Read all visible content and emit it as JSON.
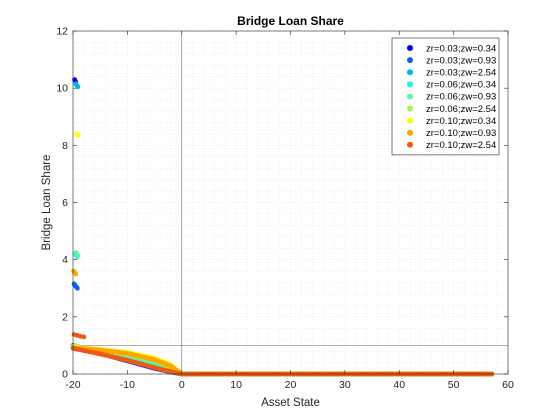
{
  "chart_data": {
    "type": "scatter",
    "title": "Bridge Loan Share",
    "xlabel": "Asset State",
    "ylabel": "Bridge Loan Share",
    "xlim": [
      -20,
      60
    ],
    "ylim": [
      0,
      12
    ],
    "x_ticks": [
      "-20",
      "-10",
      "0",
      "10",
      "20",
      "30",
      "40",
      "50",
      "60"
    ],
    "y_ticks": [
      "0",
      "2",
      "4",
      "6",
      "8",
      "10",
      "12"
    ],
    "grid": "minor dotted",
    "legend_position": "top-right",
    "reference_lines": {
      "vertical_x": 0,
      "horizontal_y": 1
    },
    "series": [
      {
        "name": "zr=0.03;zw=0.34",
        "color": "#0000ff",
        "points": [
          [
            -19.7,
            10.3
          ],
          [
            -19.6,
            10.25
          ],
          [
            -19.5,
            10.2
          ]
        ],
        "curve": [
          [
            -20,
            1.0
          ],
          [
            -15,
            0.72
          ],
          [
            -10,
            0.46
          ],
          [
            -5,
            0.2
          ],
          [
            -2,
            0.07
          ],
          [
            0,
            0
          ],
          [
            57,
            0
          ]
        ]
      },
      {
        "name": "zr=0.03;zw=0.93",
        "color": "#0f5fef",
        "points": [
          [
            -19.8,
            3.15
          ],
          [
            -19.6,
            3.1
          ],
          [
            -19.4,
            3.05
          ],
          [
            -19.2,
            3.0
          ]
        ],
        "curve": [
          [
            -20,
            0.99
          ],
          [
            -15,
            0.74
          ],
          [
            -10,
            0.5
          ],
          [
            -5,
            0.24
          ],
          [
            -2,
            0.09
          ],
          [
            0,
            0
          ],
          [
            57,
            0
          ]
        ]
      },
      {
        "name": "zr=0.03;zw=2.54",
        "color": "#00b4ef",
        "points": [
          [
            -19.5,
            10.15
          ],
          [
            -19.3,
            10.1
          ],
          [
            -19.1,
            10.05
          ]
        ],
        "curve": [
          [
            -20,
            0.98
          ],
          [
            -15,
            0.77
          ],
          [
            -10,
            0.55
          ],
          [
            -5,
            0.3
          ],
          [
            -2,
            0.12
          ],
          [
            0,
            0
          ],
          [
            57,
            0
          ]
        ]
      },
      {
        "name": "zr=0.06;zw=0.34",
        "color": "#1eefef",
        "points": [
          [
            -19.6,
            4.2
          ],
          [
            -19.4,
            4.15
          ],
          [
            -19.2,
            4.1
          ]
        ],
        "curve": [
          [
            -20,
            0.97
          ],
          [
            -15,
            0.8
          ],
          [
            -10,
            0.6
          ],
          [
            -5,
            0.36
          ],
          [
            -2,
            0.16
          ],
          [
            0,
            0
          ],
          [
            57,
            0
          ]
        ]
      },
      {
        "name": "zr=0.06;zw=0.93",
        "color": "#5ff5a8",
        "points": [
          [
            -19.5,
            4.25
          ],
          [
            -19.3,
            4.2
          ],
          [
            -19.1,
            4.15
          ]
        ],
        "curve": [
          [
            -20,
            0.96
          ],
          [
            -15,
            0.82
          ],
          [
            -10,
            0.65
          ],
          [
            -5,
            0.42
          ],
          [
            -2,
            0.2
          ],
          [
            0,
            0
          ],
          [
            57,
            0
          ]
        ]
      },
      {
        "name": "zr=0.06;zw=2.54",
        "color": "#a8f53c",
        "points": [
          [
            -19.6,
            1.0
          ],
          [
            -19.4,
            0.98
          ]
        ],
        "curve": [
          [
            -20,
            0.95
          ],
          [
            -15,
            0.84
          ],
          [
            -10,
            0.7
          ],
          [
            -5,
            0.48
          ],
          [
            -2,
            0.25
          ],
          [
            0,
            0
          ],
          [
            57,
            0
          ]
        ]
      },
      {
        "name": "zr=0.10;zw=0.34",
        "color": "#ffff00",
        "points": [
          [
            -19.3,
            8.4
          ],
          [
            -19.1,
            8.35
          ]
        ],
        "curve": [
          [
            -20,
            0.94
          ],
          [
            -15,
            0.86
          ],
          [
            -10,
            0.75
          ],
          [
            -5,
            0.55
          ],
          [
            -2,
            0.32
          ],
          [
            0,
            0
          ],
          [
            57,
            0
          ]
        ]
      },
      {
        "name": "zr=0.10;zw=0.93",
        "color": "#ffa500",
        "points": [
          [
            -19.9,
            3.6
          ],
          [
            -19.7,
            3.55
          ],
          [
            -19.5,
            3.5
          ]
        ],
        "curve": [
          [
            -20,
            0.92
          ],
          [
            -15,
            0.84
          ],
          [
            -10,
            0.72
          ],
          [
            -5,
            0.5
          ],
          [
            -2,
            0.28
          ],
          [
            0,
            0
          ],
          [
            57,
            0
          ]
        ]
      },
      {
        "name": "zr=0.10;zw=2.54",
        "color": "#ee5a14",
        "points": [
          [
            -19.8,
            1.38
          ],
          [
            -19.2,
            1.35
          ],
          [
            -18.6,
            1.32
          ],
          [
            -18.0,
            1.3
          ]
        ],
        "curve": [
          [
            -20,
            0.9
          ],
          [
            -15,
            0.7
          ],
          [
            -10,
            0.48
          ],
          [
            -5,
            0.22
          ],
          [
            -2,
            0.08
          ],
          [
            0,
            0
          ],
          [
            57,
            0
          ]
        ]
      }
    ]
  }
}
